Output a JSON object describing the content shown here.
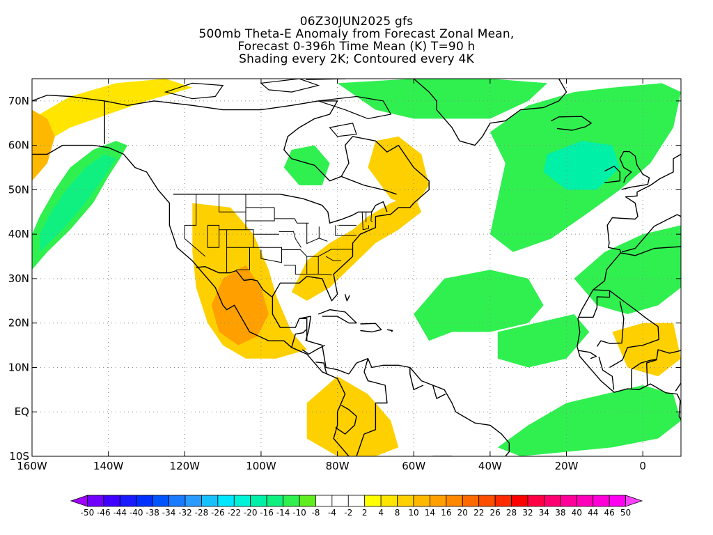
{
  "title": {
    "line1": "06Z30JUN2025 gfs",
    "line2": "500mb Theta-E Anomaly from Forecast Zonal Mean,",
    "line3": "Forecast 0-396h Time Mean (K) T=90 h",
    "line4": "Shading every 2K; Contoured every 4K"
  },
  "map": {
    "lon_range": [
      -160,
      10
    ],
    "lat_range": [
      -10,
      75
    ],
    "lat_ticks": [
      {
        "value": 70,
        "label": "70N"
      },
      {
        "value": 60,
        "label": "60N"
      },
      {
        "value": 50,
        "label": "50N"
      },
      {
        "value": 40,
        "label": "40N"
      },
      {
        "value": 30,
        "label": "30N"
      },
      {
        "value": 20,
        "label": "20N"
      },
      {
        "value": 10,
        "label": "10N"
      },
      {
        "value": 0,
        "label": "EQ"
      },
      {
        "value": -10,
        "label": "10S"
      }
    ],
    "lon_ticks": [
      {
        "value": -160,
        "label": "160W"
      },
      {
        "value": -140,
        "label": "140W"
      },
      {
        "value": -120,
        "label": "120W"
      },
      {
        "value": -100,
        "label": "100W"
      },
      {
        "value": -80,
        "label": "80W"
      },
      {
        "value": -60,
        "label": "60W"
      },
      {
        "value": -40,
        "label": "40W"
      },
      {
        "value": -20,
        "label": "20W"
      },
      {
        "value": 0,
        "label": "0"
      }
    ]
  },
  "colorbar": {
    "labels": [
      "-50",
      "-46",
      "-44",
      "-40",
      "-38",
      "-34",
      "-32",
      "-28",
      "-26",
      "-22",
      "-20",
      "-16",
      "-14",
      "-10",
      "-8",
      "-4",
      "-2",
      "2",
      "4",
      "8",
      "10",
      "14",
      "16",
      "20",
      "22",
      "26",
      "28",
      "32",
      "34",
      "38",
      "40",
      "44",
      "46",
      "50"
    ],
    "colors": [
      "#a000ff",
      "#7000ff",
      "#4000ff",
      "#1a1aff",
      "#0030ff",
      "#0055ff",
      "#1a7bff",
      "#2a9bff",
      "#17c0ff",
      "#00e6ff",
      "#00f2d8",
      "#00f0a8",
      "#10f080",
      "#30f050",
      "#60ee20",
      "#ffffff",
      "#ffffff",
      "#ffffff",
      "#ffff00",
      "#ffe500",
      "#ffd000",
      "#ffb800",
      "#ffa000",
      "#ff8800",
      "#ff6a00",
      "#ff4e00",
      "#ff2a00",
      "#ff0000",
      "#ff0045",
      "#ff0070",
      "#ff0098",
      "#ff00b8",
      "#ff00d8",
      "#ff00f0",
      "#ff40ff"
    ]
  },
  "anomaly_regions": [
    {
      "name": "north-pacific-cold-tongue",
      "value": -10,
      "color": "#30f050",
      "outline": [
        [
          -160,
          32
        ],
        [
          -156,
          36
        ],
        [
          -150,
          41
        ],
        [
          -144,
          47
        ],
        [
          -140,
          53
        ],
        [
          -137,
          57
        ],
        [
          -135,
          60
        ],
        [
          -138,
          61
        ],
        [
          -144,
          59
        ],
        [
          -150,
          55
        ],
        [
          -154,
          50
        ],
        [
          -158,
          44
        ],
        [
          -160,
          40
        ]
      ]
    },
    {
      "name": "north-pacific-cold-core",
      "value": -14,
      "color": "#10f080",
      "outline": [
        [
          -158,
          36
        ],
        [
          -152,
          41
        ],
        [
          -146,
          47
        ],
        [
          -141,
          53
        ],
        [
          -138,
          57
        ],
        [
          -141,
          58
        ],
        [
          -146,
          55
        ],
        [
          -151,
          50
        ],
        [
          -155,
          45
        ],
        [
          -158,
          40
        ]
      ]
    },
    {
      "name": "gulf-of-alaska-warm",
      "value": 6,
      "color": "#ffe500",
      "outline": [
        [
          -160,
          66
        ],
        [
          -150,
          71
        ],
        [
          -138,
          74
        ],
        [
          -125,
          75
        ],
        [
          -118,
          73
        ],
        [
          -130,
          70
        ],
        [
          -140,
          67
        ],
        [
          -150,
          64
        ],
        [
          -158,
          60
        ],
        [
          -160,
          58
        ]
      ]
    },
    {
      "name": "bering-warm",
      "value": 10,
      "color": "#ffb800",
      "outline": [
        [
          -160,
          52
        ],
        [
          -156,
          56
        ],
        [
          -154,
          62
        ],
        [
          -156,
          66
        ],
        [
          -160,
          68
        ]
      ]
    },
    {
      "name": "west-us-mexico-warm",
      "value": 8,
      "color": "#ffd000",
      "outline": [
        [
          -118,
          47
        ],
        [
          -108,
          46
        ],
        [
          -102,
          40
        ],
        [
          -98,
          32
        ],
        [
          -96,
          26
        ],
        [
          -92,
          18
        ],
        [
          -88,
          14
        ],
        [
          -96,
          12
        ],
        [
          -104,
          12
        ],
        [
          -110,
          15
        ],
        [
          -114,
          20
        ],
        [
          -117,
          28
        ],
        [
          -118,
          36
        ]
      ]
    },
    {
      "name": "mexico-warm-core",
      "value": 14,
      "color": "#ffa000",
      "outline": [
        [
          -110,
          30
        ],
        [
          -104,
          33
        ],
        [
          -100,
          28
        ],
        [
          -98,
          22
        ],
        [
          -101,
          17
        ],
        [
          -106,
          15
        ],
        [
          -111,
          18
        ],
        [
          -113,
          24
        ]
      ]
    },
    {
      "name": "east-us-warm",
      "value": 8,
      "color": "#ffd000",
      "outline": [
        [
          -92,
          27
        ],
        [
          -88,
          34
        ],
        [
          -82,
          38
        ],
        [
          -76,
          41
        ],
        [
          -72,
          44
        ],
        [
          -66,
          47
        ],
        [
          -60,
          49
        ],
        [
          -58,
          45
        ],
        [
          -64,
          41
        ],
        [
          -70,
          38
        ],
        [
          -76,
          33
        ],
        [
          -82,
          28
        ],
        [
          -88,
          25
        ]
      ]
    },
    {
      "name": "labrador-warm",
      "value": 8,
      "color": "#ffd000",
      "outline": [
        [
          -70,
          61
        ],
        [
          -64,
          62
        ],
        [
          -58,
          58
        ],
        [
          -56,
          51
        ],
        [
          -60,
          46
        ],
        [
          -66,
          48
        ],
        [
          -72,
          55
        ]
      ]
    },
    {
      "name": "hudson-bay-cool",
      "value": -10,
      "color": "#30f050",
      "outline": [
        [
          -92,
          59
        ],
        [
          -86,
          60
        ],
        [
          -82,
          56
        ],
        [
          -84,
          51
        ],
        [
          -90,
          51
        ],
        [
          -94,
          55
        ]
      ]
    },
    {
      "name": "greenland-cold-band",
      "value": -10,
      "color": "#30f050",
      "outline": [
        [
          -80,
          74
        ],
        [
          -60,
          75
        ],
        [
          -40,
          75
        ],
        [
          -25,
          74
        ],
        [
          -30,
          70
        ],
        [
          -40,
          66
        ],
        [
          -50,
          66
        ],
        [
          -60,
          66
        ],
        [
          -70,
          68
        ]
      ]
    },
    {
      "name": "north-atlantic-cold-tongue",
      "value": -12,
      "color": "#30f050",
      "outline": [
        [
          -40,
          63
        ],
        [
          -30,
          69
        ],
        [
          -18,
          72
        ],
        [
          -8,
          73
        ],
        [
          5,
          74
        ],
        [
          10,
          72
        ],
        [
          8,
          64
        ],
        [
          2,
          56
        ],
        [
          -6,
          50
        ],
        [
          -14,
          45
        ],
        [
          -24,
          39
        ],
        [
          -34,
          36
        ],
        [
          -40,
          40
        ],
        [
          -38,
          48
        ],
        [
          -36,
          56
        ]
      ]
    },
    {
      "name": "north-atlantic-cold-core",
      "value": -18,
      "color": "#00f0a8",
      "outline": [
        [
          -25,
          58
        ],
        [
          -16,
          61
        ],
        [
          -8,
          60
        ],
        [
          -6,
          55
        ],
        [
          -12,
          50
        ],
        [
          -20,
          50
        ],
        [
          -26,
          54
        ]
      ]
    },
    {
      "name": "central-atlantic-cool",
      "value": -10,
      "color": "#30f050",
      "outline": [
        [
          -60,
          22
        ],
        [
          -52,
          30
        ],
        [
          -40,
          32
        ],
        [
          -30,
          30
        ],
        [
          -26,
          24
        ],
        [
          -30,
          20
        ],
        [
          -40,
          18
        ],
        [
          -50,
          18
        ],
        [
          -56,
          16
        ]
      ]
    },
    {
      "name": "tropical-atlantic-cool",
      "value": -10,
      "color": "#30f050",
      "outline": [
        [
          -38,
          18
        ],
        [
          -28,
          20
        ],
        [
          -18,
          22
        ],
        [
          -14,
          18
        ],
        [
          -20,
          12
        ],
        [
          -30,
          10
        ],
        [
          -38,
          12
        ]
      ]
    },
    {
      "name": "south-atlantic-cool",
      "value": -10,
      "color": "#30f050",
      "outline": [
        [
          -38,
          -8
        ],
        [
          -30,
          -3
        ],
        [
          -20,
          2
        ],
        [
          -10,
          4
        ],
        [
          0,
          6
        ],
        [
          8,
          4
        ],
        [
          10,
          -2
        ],
        [
          4,
          -6
        ],
        [
          -8,
          -8
        ],
        [
          -20,
          -9
        ],
        [
          -32,
          -10
        ]
      ]
    },
    {
      "name": "amazon-warm",
      "value": 8,
      "color": "#ffd000",
      "outline": [
        [
          -88,
          2
        ],
        [
          -80,
          8
        ],
        [
          -72,
          4
        ],
        [
          -66,
          -2
        ],
        [
          -64,
          -8
        ],
        [
          -70,
          -10
        ],
        [
          -80,
          -10
        ],
        [
          -88,
          -6
        ]
      ]
    },
    {
      "name": "sahara-cool",
      "value": -10,
      "color": "#30f050",
      "outline": [
        [
          -18,
          30
        ],
        [
          -10,
          36
        ],
        [
          0,
          40
        ],
        [
          10,
          42
        ],
        [
          10,
          28
        ],
        [
          4,
          24
        ],
        [
          -4,
          22
        ],
        [
          -12,
          24
        ]
      ]
    },
    {
      "name": "west-africa-warm",
      "value": 8,
      "color": "#ffd000",
      "outline": [
        [
          -8,
          18
        ],
        [
          0,
          20
        ],
        [
          8,
          20
        ],
        [
          10,
          12
        ],
        [
          4,
          8
        ],
        [
          -4,
          10
        ]
      ]
    }
  ]
}
